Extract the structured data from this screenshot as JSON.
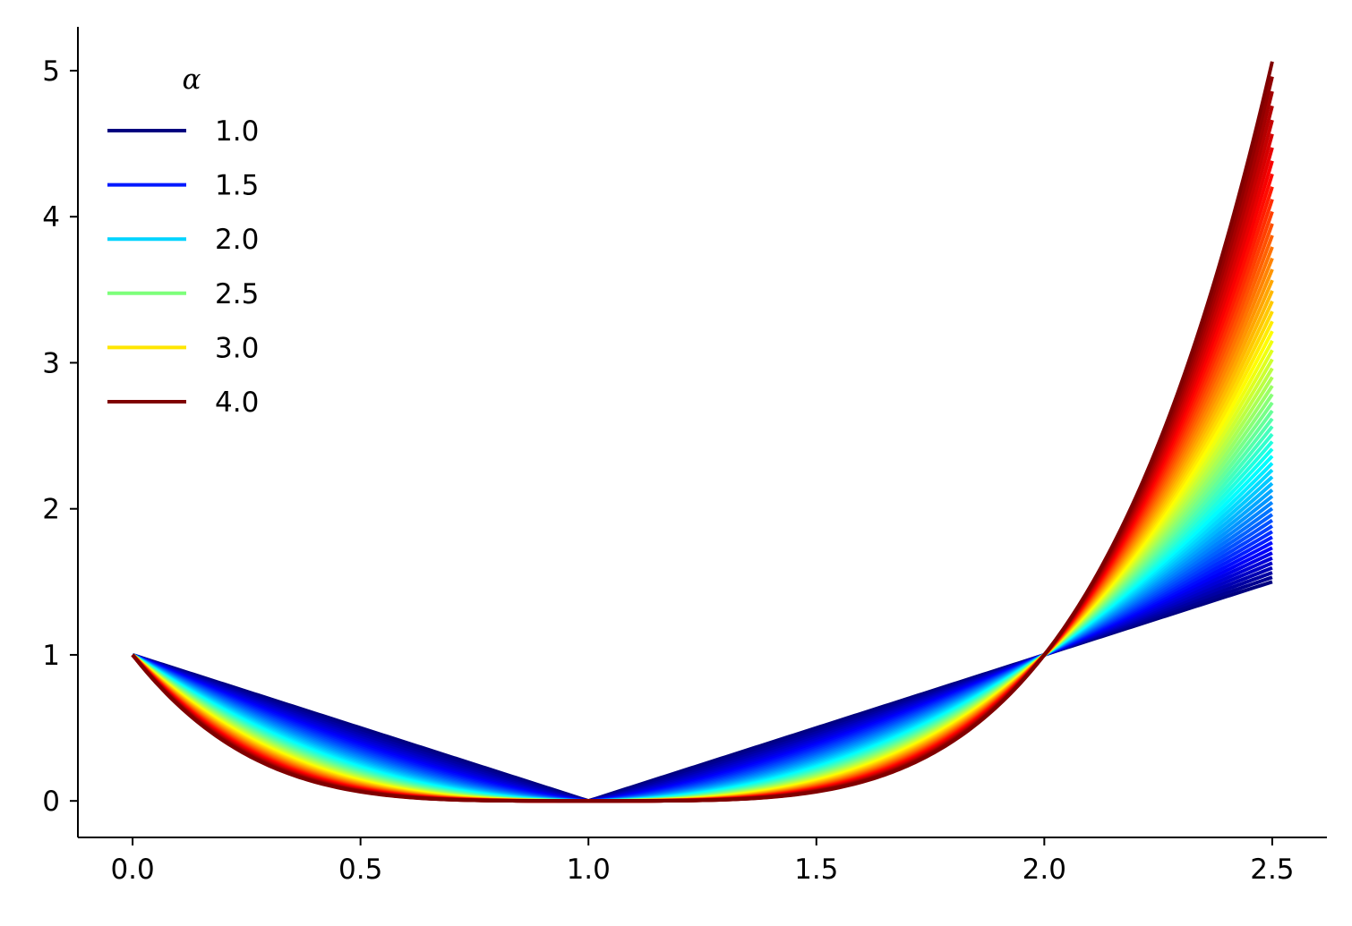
{
  "chart_data": {
    "type": "line",
    "title": "",
    "xlabel": "",
    "ylabel": "",
    "description_of_series": "family of curves y = |x - 1|^alpha for alpha from 1.0 to 4.0, colored by jet colormap",
    "function": "abs(x-1)^alpha",
    "x_range": [
      0.0,
      2.5
    ],
    "alpha_range": [
      1.0,
      4.0
    ],
    "n_curves": 60,
    "xlim": [
      -0.12,
      2.62
    ],
    "ylim": [
      -0.25,
      5.3
    ],
    "xticks": [
      "0.0",
      "0.5",
      "1.0",
      "1.5",
      "2.0",
      "2.5"
    ],
    "xtick_values": [
      0.0,
      0.5,
      1.0,
      1.5,
      2.0,
      2.5
    ],
    "yticks": [
      "0",
      "1",
      "2",
      "3",
      "4",
      "5"
    ],
    "ytick_values": [
      0,
      1,
      2,
      3,
      4,
      5
    ],
    "grid": false,
    "legend": {
      "title": "α",
      "placement": "top-left",
      "entries": [
        {
          "label": "1.0",
          "alpha": 1.0,
          "color": "#00007f"
        },
        {
          "label": "1.5",
          "alpha": 1.5,
          "color": "#0019ff"
        },
        {
          "label": "2.0",
          "alpha": 2.0,
          "color": "#00d4ff"
        },
        {
          "label": "2.5",
          "alpha": 2.5,
          "color": "#7dff7a"
        },
        {
          "label": "3.0",
          "alpha": 3.0,
          "color": "#ffe600"
        },
        {
          "label": "4.0",
          "alpha": 4.0,
          "color": "#7f0000"
        }
      ]
    },
    "colormap": "jet"
  }
}
